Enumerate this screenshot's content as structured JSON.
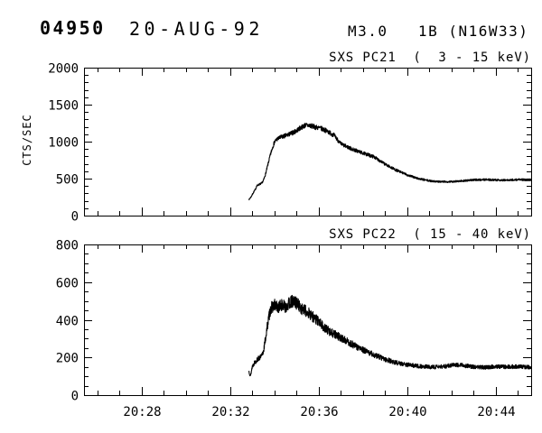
{
  "header": {
    "event_id": "04950",
    "date": "20-AUG-92",
    "flare_info": "M3.0   1B (N16W33)"
  },
  "colors": {
    "ink": "#000000",
    "background": "#ffffff"
  },
  "chart_data": [
    {
      "type": "line",
      "title": "SXS PC21  (  3 - 15 keV)",
      "ylabel": "CTS/SEC",
      "ylim": [
        0,
        2000
      ],
      "y_tick_labels": [
        "0",
        "500",
        "1000",
        "1500",
        "2000"
      ],
      "y_major_values": [
        0,
        500,
        1000,
        1500,
        2000
      ],
      "y_minor_step": 100,
      "xlim_minutes_after_2000": [
        25.4,
        45.6
      ],
      "x_major_minutes": [
        28,
        32,
        36,
        40,
        44
      ],
      "x_tick_labels": [
        "20:28",
        "20:32",
        "20:36",
        "20:40",
        "20:44"
      ],
      "x_minor_step_minutes": 1,
      "show_x_labels": false,
      "grid": false,
      "noise_fraction": 0.028,
      "noise_min": 7,
      "noise_seed": 7,
      "series_keypoints": [
        [
          32.85,
          215
        ],
        [
          32.95,
          255
        ],
        [
          33.05,
          310
        ],
        [
          33.15,
          360
        ],
        [
          33.2,
          400
        ],
        [
          33.3,
          420
        ],
        [
          33.42,
          435
        ],
        [
          33.5,
          470
        ],
        [
          33.6,
          560
        ],
        [
          33.7,
          680
        ],
        [
          33.8,
          800
        ],
        [
          33.9,
          905
        ],
        [
          34.0,
          990
        ],
        [
          34.1,
          1030
        ],
        [
          34.3,
          1060
        ],
        [
          34.6,
          1090
        ],
        [
          34.9,
          1130
        ],
        [
          35.2,
          1190
        ],
        [
          35.4,
          1222
        ],
        [
          35.6,
          1218
        ],
        [
          35.8,
          1200
        ],
        [
          36.1,
          1180
        ],
        [
          36.4,
          1140
        ],
        [
          36.7,
          1085
        ],
        [
          37.0,
          970
        ],
        [
          37.5,
          900
        ],
        [
          38.0,
          845
        ],
        [
          38.5,
          795
        ],
        [
          39.0,
          695
        ],
        [
          39.5,
          615
        ],
        [
          40.0,
          550
        ],
        [
          40.5,
          500
        ],
        [
          41.0,
          470
        ],
        [
          41.5,
          457
        ],
        [
          42.0,
          460
        ],
        [
          42.5,
          470
        ],
        [
          43.0,
          482
        ],
        [
          43.5,
          487
        ],
        [
          44.0,
          482
        ],
        [
          44.5,
          478
        ],
        [
          45.0,
          486
        ],
        [
          45.6,
          483
        ]
      ]
    },
    {
      "type": "line",
      "title": "SXS PC22  ( 15 - 40 keV)",
      "ylabel": "",
      "ylim": [
        0,
        800
      ],
      "y_tick_labels": [
        "0",
        "200",
        "400",
        "600",
        "800"
      ],
      "y_major_values": [
        0,
        200,
        400,
        600,
        800
      ],
      "y_minor_step": 50,
      "xlim_minutes_after_2000": [
        25.4,
        45.6
      ],
      "x_major_minutes": [
        28,
        32,
        36,
        40,
        44
      ],
      "x_tick_labels": [
        "20:28",
        "20:32",
        "20:36",
        "20:40",
        "20:44"
      ],
      "x_minor_step_minutes": 1,
      "show_x_labels": true,
      "grid": false,
      "noise_fraction": 0.07,
      "noise_min": 6,
      "noise_seed": 13,
      "series_keypoints": [
        [
          32.85,
          128
        ],
        [
          32.92,
          100
        ],
        [
          33.0,
          152
        ],
        [
          33.1,
          172
        ],
        [
          33.2,
          185
        ],
        [
          33.3,
          196
        ],
        [
          33.42,
          205
        ],
        [
          33.5,
          230
        ],
        [
          33.6,
          300
        ],
        [
          33.7,
          380
        ],
        [
          33.8,
          445
        ],
        [
          33.9,
          470
        ],
        [
          34.0,
          478
        ],
        [
          34.15,
          465
        ],
        [
          34.3,
          478
        ],
        [
          34.5,
          470
        ],
        [
          34.7,
          490
        ],
        [
          34.85,
          500
        ],
        [
          35.0,
          488
        ],
        [
          35.2,
          462
        ],
        [
          35.6,
          432
        ],
        [
          36.0,
          390
        ],
        [
          36.3,
          352
        ],
        [
          36.7,
          325
        ],
        [
          37.0,
          304
        ],
        [
          37.3,
          285
        ],
        [
          37.6,
          264
        ],
        [
          38.0,
          240
        ],
        [
          38.3,
          223
        ],
        [
          38.7,
          205
        ],
        [
          39.0,
          191
        ],
        [
          39.4,
          175
        ],
        [
          39.7,
          167
        ],
        [
          40.2,
          158
        ],
        [
          40.7,
          152
        ],
        [
          41.2,
          149
        ],
        [
          41.7,
          152
        ],
        [
          42.1,
          163
        ],
        [
          42.5,
          158
        ],
        [
          43.0,
          150
        ],
        [
          43.5,
          147
        ],
        [
          44.0,
          152
        ],
        [
          44.5,
          150
        ],
        [
          45.0,
          152
        ],
        [
          45.6,
          148
        ]
      ]
    }
  ]
}
